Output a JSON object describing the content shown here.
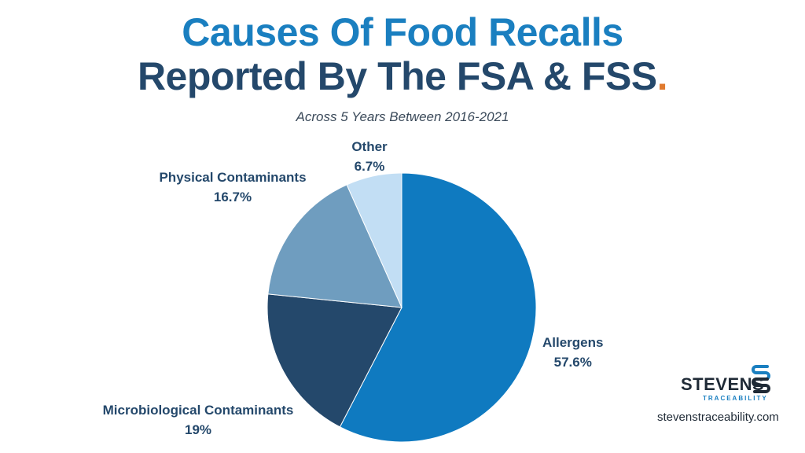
{
  "header": {
    "title_line1": "Causes Of Food Recalls",
    "title_line2": "Reported By The FSA & FSS",
    "title_dot": ".",
    "subtitle": "Across 5 Years Between 2016-2021"
  },
  "chart_data": {
    "type": "pie",
    "title": "Causes Of Food Recalls Reported By The FSA & FSS.",
    "subtitle": "Across 5 Years Between 2016-2021",
    "slices": [
      {
        "name": "Allergens",
        "value": 57.6,
        "label": "57.6%",
        "color": "#0f7ac0"
      },
      {
        "name": "Microbiological Contaminants",
        "value": 19,
        "label": "19%",
        "color": "#24486b"
      },
      {
        "name": "Physical Contaminants",
        "value": 16.7,
        "label": "16.7%",
        "color": "#6f9dbf"
      },
      {
        "name": "Other",
        "value": 6.7,
        "label": "6.7%",
        "color": "#c2def4"
      }
    ],
    "start_angle": "12 o'clock",
    "direction": "clockwise",
    "legend": "none"
  },
  "branding": {
    "logo_name": "STEVENS",
    "logo_sub": "TRACEABILITY",
    "logo_icon": "stacked-s-icon",
    "website": "stevenstraceability.com"
  }
}
